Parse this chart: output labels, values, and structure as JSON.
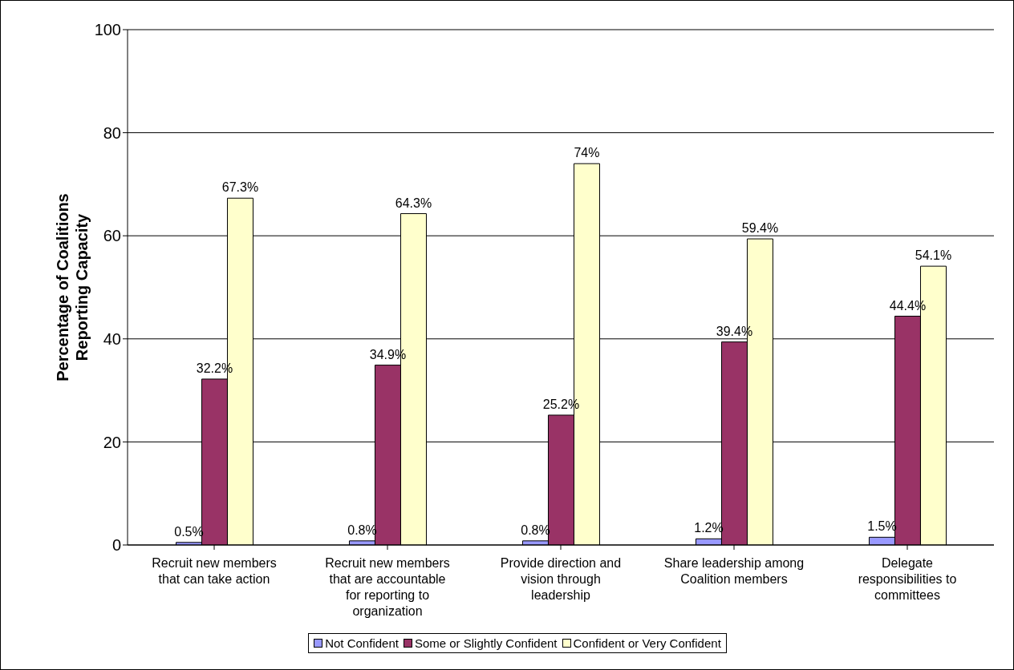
{
  "chart_data": {
    "type": "bar",
    "ylabel": "Percentage of Coalitions Reporting Capacity",
    "categories": [
      "Recruit new members that can take action",
      "Recruit new members that are accountable for reporting to organization",
      "Provide direction and vision through leadership",
      "Share leadership among Coalition members",
      "Delegate responsibilities to committees"
    ],
    "series": [
      {
        "name": "Not Confident",
        "color": "#9999ff",
        "values": [
          0.5,
          0.8,
          0.8,
          1.2,
          1.5
        ],
        "value_labels": [
          "0.5%",
          "0.8%",
          "0.8%",
          "1.2%",
          "1.5%"
        ]
      },
      {
        "name": "Some or Slightly Confident",
        "color": "#993366",
        "values": [
          32.2,
          34.9,
          25.2,
          39.4,
          44.4
        ],
        "value_labels": [
          "32.2%",
          "34.9%",
          "25.2%",
          "39.4%",
          "44.4%"
        ]
      },
      {
        "name": "Confident or Very Confident",
        "color": "#ffffcc",
        "values": [
          67.3,
          64.3,
          74,
          59.4,
          54.1
        ],
        "value_labels": [
          "67.3%",
          "64.3%",
          "74%",
          "59.4%",
          "54.1%"
        ]
      }
    ],
    "ylim": [
      0,
      100
    ],
    "yticks": [
      0,
      20,
      40,
      60,
      80,
      100
    ],
    "grid": "y",
    "legend": "bottom"
  }
}
